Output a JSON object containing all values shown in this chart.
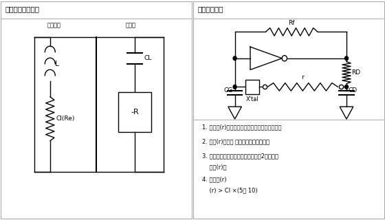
{
  "title_left": "晶体单元和振荡器",
  "title_right": "负极电阵检查",
  "label_crystal": "晶体单元",
  "label_osc": "振荡器",
  "bg_color": "#ffffff",
  "border_color": "#aaaaaa",
  "line_color": "#000000",
  "text_color": "#000000",
  "note1": "1. 将电阵(r)跟晶体单元按串联方式连接到电路。",
  "note2": "2. 调整(r)，使得 振荡发生（或停止）。",
  "note3": "3. 当振荡刚启动（或停止）时，如（2）所述，",
  "note3b": "    测量(r)。",
  "note4": "4. 推荐的(r)",
  "note4b": "    (r) > CI ×(5至 10)"
}
